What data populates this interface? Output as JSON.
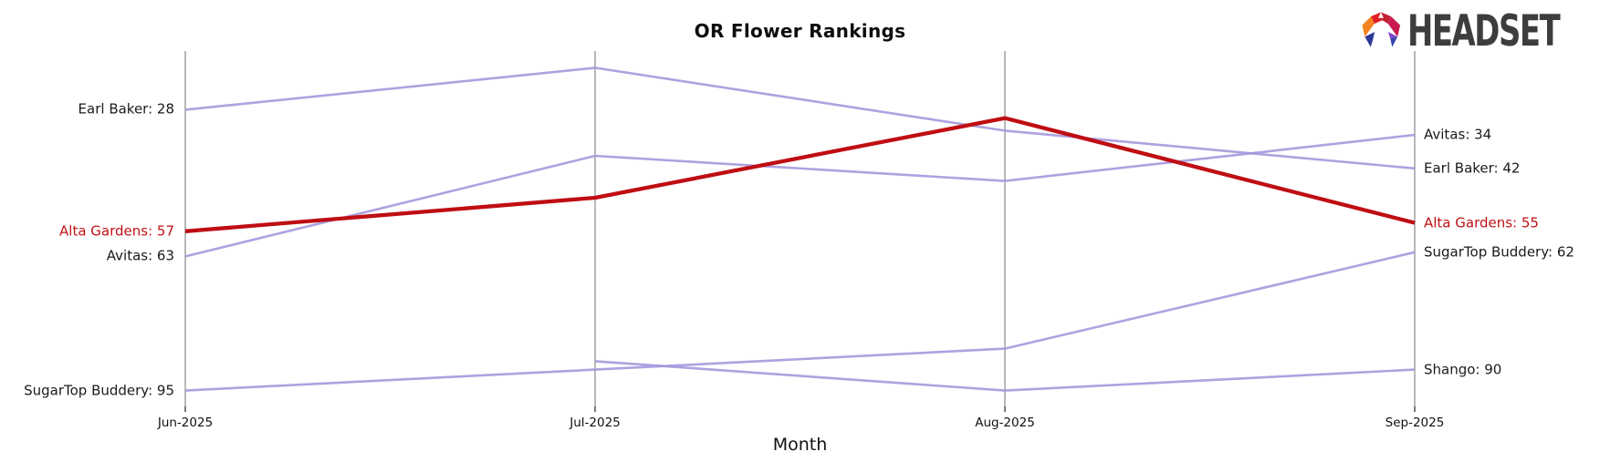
{
  "header": {
    "title": "OR Flower Rankings",
    "logo_text": "HEADSET"
  },
  "chart_data": {
    "type": "line",
    "subtype": "bump-ranking",
    "title": "OR Flower Rankings",
    "xlabel": "Month",
    "categories": [
      "Jun-2025",
      "Jul-2025",
      "Aug-2025",
      "Sep-2025"
    ],
    "y_meaning": "sales rank (lower number = higher position on chart)",
    "series": [
      {
        "name": "Earl Baker",
        "values": [
          28,
          18,
          33,
          42
        ],
        "highlight": false
      },
      {
        "name": "Avitas",
        "values": [
          63,
          39,
          45,
          34
        ],
        "highlight": false
      },
      {
        "name": "SugarTop Buddery",
        "values": [
          95,
          90,
          85,
          62
        ],
        "highlight": false
      },
      {
        "name": "Shango",
        "values": [
          null,
          88,
          95,
          90
        ],
        "highlight": false
      },
      {
        "name": "Alta Gardens",
        "values": [
          57,
          49,
          30,
          55
        ],
        "highlight": true
      }
    ],
    "left_labels": [
      "Earl Baker: 28",
      "Alta Gardens: 57",
      "Avitas: 63",
      "SugarTop Buddery: 95"
    ],
    "right_labels": [
      "Avitas: 34",
      "Earl Baker: 42",
      "Alta Gardens: 55",
      "SugarTop Buddery: 62",
      "Shango: 90"
    ],
    "legend_position": "edge-labels",
    "grid": "vertical-month-axes-only",
    "colors": {
      "line": "#a395dc",
      "highlight": "#bf0e13",
      "highlight_label": "#bf1114",
      "axis": "#a6a6a6",
      "tick": "#222222",
      "text": "#1a1a1a",
      "logo_text": "#3d3d3d"
    }
  }
}
